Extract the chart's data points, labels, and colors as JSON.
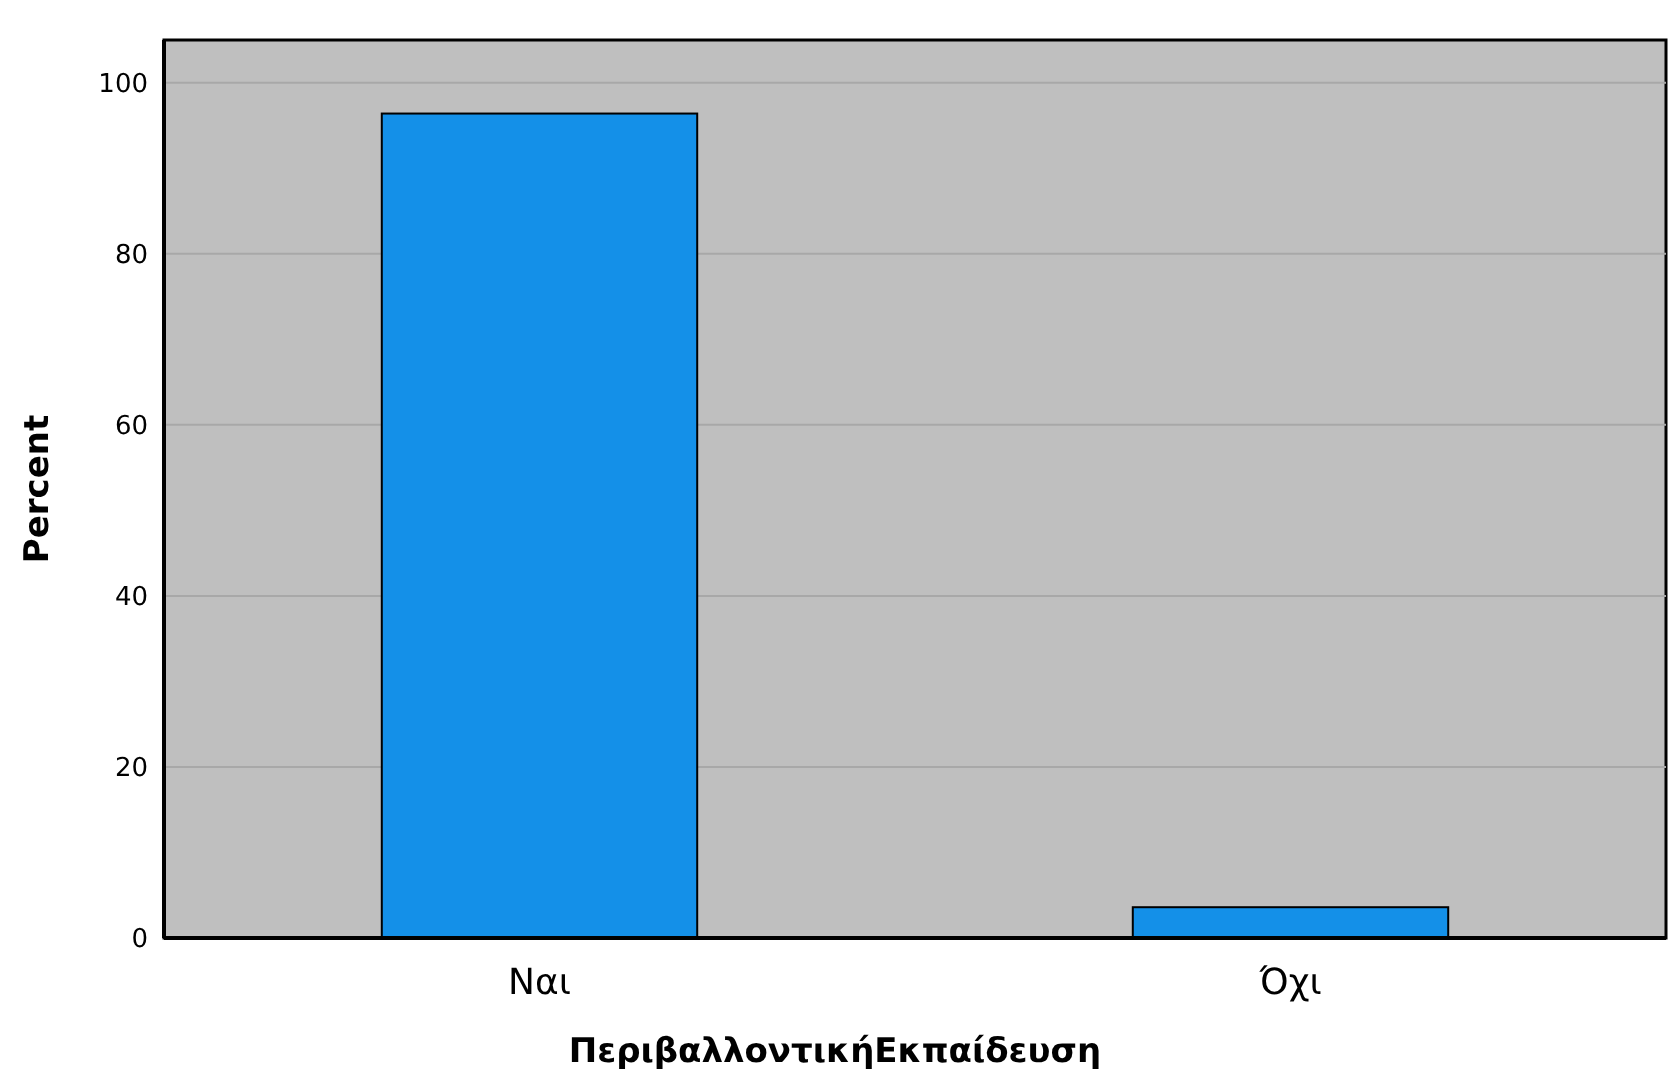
{
  "chart_data": {
    "type": "bar",
    "xlabel": "ΠεριβαλλοντικήΕκπαίδευση",
    "ylabel": "Percent",
    "categories": [
      "Ναι",
      "Όχι"
    ],
    "values": [
      96.4,
      3.6
    ],
    "color": "#1490e8",
    "ylim": [
      0,
      105
    ],
    "yticks": [
      0,
      20,
      40,
      60,
      80,
      100
    ],
    "grid": "y"
  }
}
